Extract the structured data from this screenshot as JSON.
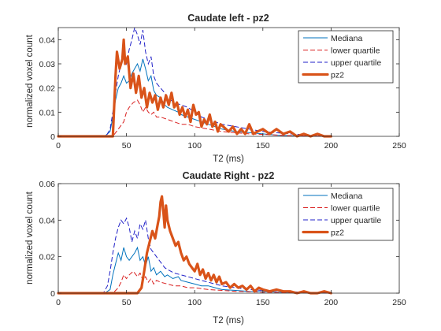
{
  "colors": {
    "mediana": "#0072BD",
    "lower": "#D92020",
    "upper": "#2020C8",
    "pz2": "#D95319",
    "axis": "#262626"
  },
  "chart_data": [
    {
      "type": "line",
      "title": "Caudate left - pz2",
      "xlabel": "T2 (ms)",
      "ylabel": "normalized voxel count",
      "xlim": [
        0,
        250
      ],
      "ylim": [
        0,
        0.045
      ],
      "xticks": [
        0,
        50,
        100,
        150,
        200,
        250
      ],
      "yticks": [
        0,
        0.01,
        0.02,
        0.03,
        0.04
      ],
      "xtick_labels": [
        "0",
        "50",
        "100",
        "150",
        "200",
        "250"
      ],
      "ytick_labels": [
        "0",
        "0.01",
        "0.02",
        "0.03",
        "0.04"
      ],
      "legend": {
        "position": "top-right",
        "entries": [
          "Mediana",
          "lower quartile",
          "upper quartile",
          "pz2"
        ]
      },
      "series": [
        {
          "name": "Mediana",
          "style": "solid",
          "color": "mediana",
          "x": [
            0,
            34,
            38,
            40,
            42,
            44,
            46,
            48,
            50,
            52,
            54,
            56,
            58,
            60,
            62,
            64,
            66,
            68,
            70,
            72,
            75,
            78,
            80,
            84,
            88,
            90,
            95,
            100,
            105,
            110,
            115,
            120,
            130,
            140,
            150,
            160,
            170,
            180,
            200
          ],
          "y": [
            0,
            0,
            0.002,
            0.008,
            0.015,
            0.02,
            0.022,
            0.025,
            0.022,
            0.023,
            0.026,
            0.028,
            0.03,
            0.027,
            0.032,
            0.028,
            0.023,
            0.025,
            0.019,
            0.017,
            0.016,
            0.013,
            0.012,
            0.011,
            0.01,
            0.009,
            0.008,
            0.007,
            0.006,
            0.005,
            0.004,
            0.003,
            0.002,
            0.0015,
            0.001,
            0.0005,
            0.0003,
            0.0001,
            0
          ]
        },
        {
          "name": "lower quartile",
          "style": "dashed",
          "color": "lower",
          "x": [
            0,
            40,
            44,
            48,
            50,
            52,
            55,
            58,
            60,
            62,
            64,
            66,
            68,
            70,
            72,
            75,
            80,
            85,
            90,
            95,
            100,
            110,
            120,
            130,
            140,
            150,
            170,
            200
          ],
          "y": [
            0,
            0,
            0.003,
            0.006,
            0.01,
            0.012,
            0.014,
            0.015,
            0.013,
            0.01,
            0.012,
            0.01,
            0.009,
            0.01,
            0.008,
            0.008,
            0.007,
            0.006,
            0.005,
            0.005,
            0.004,
            0.003,
            0.002,
            0.0015,
            0.001,
            0.0008,
            0.0003,
            0
          ]
        },
        {
          "name": "upper quartile",
          "style": "dashed",
          "color": "upper",
          "x": [
            0,
            35,
            38,
            40,
            42,
            44,
            46,
            48,
            50,
            52,
            54,
            56,
            58,
            60,
            62,
            64,
            66,
            68,
            70,
            72,
            75,
            78,
            80,
            85,
            90,
            95,
            100,
            105,
            110,
            120,
            130,
            140,
            150,
            170,
            200
          ],
          "y": [
            0,
            0,
            0.003,
            0.01,
            0.018,
            0.025,
            0.03,
            0.033,
            0.03,
            0.036,
            0.04,
            0.045,
            0.042,
            0.038,
            0.044,
            0.035,
            0.03,
            0.033,
            0.025,
            0.022,
            0.02,
            0.018,
            0.016,
            0.014,
            0.013,
            0.012,
            0.01,
            0.008,
            0.007,
            0.005,
            0.004,
            0.003,
            0.002,
            0.001,
            0
          ]
        },
        {
          "name": "pz2",
          "style": "thick",
          "color": "pz2",
          "x": [
            0,
            40,
            42,
            43,
            45,
            47,
            48,
            49,
            51,
            53,
            55,
            57,
            59,
            61,
            63,
            65,
            67,
            69,
            71,
            73,
            75,
            77,
            79,
            81,
            83,
            85,
            87,
            89,
            91,
            93,
            95,
            97,
            99,
            101,
            103,
            105,
            107,
            109,
            111,
            113,
            115,
            117,
            119,
            121,
            123,
            125,
            128,
            131,
            134,
            137,
            140,
            143,
            146,
            150,
            155,
            160,
            165,
            170,
            175,
            180,
            185,
            190,
            195,
            200
          ],
          "y": [
            0,
            0,
            0.025,
            0.035,
            0.028,
            0.032,
            0.04,
            0.03,
            0.033,
            0.02,
            0.026,
            0.018,
            0.025,
            0.016,
            0.02,
            0.012,
            0.018,
            0.014,
            0.017,
            0.011,
            0.016,
            0.012,
            0.017,
            0.013,
            0.018,
            0.012,
            0.014,
            0.009,
            0.012,
            0.008,
            0.011,
            0.006,
            0.013,
            0.009,
            0.01,
            0.004,
            0.007,
            0.005,
            0.009,
            0.004,
            0.006,
            0.002,
            0.005,
            0.004,
            0.003,
            0.002,
            0.004,
            0.001,
            0.003,
            0.001,
            0.005,
            0.001,
            0.002,
            0.003,
            0.001,
            0.003,
            0.001,
            0.002,
            0,
            0.001,
            0,
            0.001,
            0,
            0
          ]
        }
      ]
    },
    {
      "type": "line",
      "title": "Caudate Right - pz2",
      "xlabel": "T2 (ms)",
      "ylabel": "normalized voxel count",
      "xlim": [
        0,
        250
      ],
      "ylim": [
        0,
        0.06
      ],
      "xticks": [
        0,
        50,
        100,
        150,
        200,
        250
      ],
      "yticks": [
        0,
        0.02,
        0.04,
        0.06
      ],
      "xtick_labels": [
        "0",
        "50",
        "100",
        "150",
        "200",
        "250"
      ],
      "ytick_labels": [
        "0",
        "0.02",
        "0.04",
        "0.06"
      ],
      "legend": {
        "position": "top-right",
        "entries": [
          "Mediana",
          "lower quartile",
          "upper quartile",
          "pz2"
        ]
      },
      "series": [
        {
          "name": "Mediana",
          "style": "solid",
          "color": "mediana",
          "x": [
            0,
            34,
            38,
            40,
            42,
            44,
            46,
            48,
            50,
            52,
            54,
            56,
            58,
            60,
            62,
            64,
            66,
            68,
            70,
            72,
            75,
            78,
            80,
            84,
            88,
            90,
            95,
            100,
            105,
            110,
            115,
            120,
            130,
            140,
            150,
            160,
            170,
            180,
            200
          ],
          "y": [
            0,
            0,
            0.002,
            0.01,
            0.016,
            0.022,
            0.018,
            0.025,
            0.02,
            0.018,
            0.02,
            0.022,
            0.025,
            0.018,
            0.02,
            0.015,
            0.02,
            0.012,
            0.014,
            0.01,
            0.012,
            0.009,
            0.01,
            0.008,
            0.009,
            0.007,
            0.006,
            0.005,
            0.004,
            0.004,
            0.003,
            0.002,
            0.0015,
            0.001,
            0.0008,
            0.0005,
            0.0003,
            0.0001,
            0
          ]
        },
        {
          "name": "lower quartile",
          "style": "dashed",
          "color": "lower",
          "x": [
            0,
            40,
            44,
            46,
            48,
            50,
            52,
            55,
            58,
            60,
            62,
            64,
            66,
            68,
            70,
            72,
            75,
            80,
            85,
            90,
            95,
            100,
            110,
            120,
            130,
            140,
            150,
            170,
            200
          ],
          "y": [
            0,
            0,
            0.003,
            0.006,
            0.01,
            0.008,
            0.01,
            0.012,
            0.009,
            0.011,
            0.007,
            0.009,
            0.006,
            0.008,
            0.005,
            0.007,
            0.006,
            0.005,
            0.004,
            0.004,
            0.003,
            0.003,
            0.002,
            0.0015,
            0.001,
            0.0008,
            0.0005,
            0.0002,
            0
          ]
        },
        {
          "name": "upper quartile",
          "style": "dashed",
          "color": "upper",
          "x": [
            0,
            33,
            36,
            38,
            40,
            42,
            44,
            46,
            48,
            50,
            52,
            54,
            56,
            58,
            60,
            62,
            64,
            66,
            68,
            70,
            72,
            75,
            78,
            80,
            85,
            90,
            95,
            100,
            105,
            110,
            120,
            130,
            140,
            150,
            170,
            200
          ],
          "y": [
            0,
            0,
            0.004,
            0.012,
            0.022,
            0.03,
            0.036,
            0.04,
            0.038,
            0.041,
            0.036,
            0.028,
            0.034,
            0.03,
            0.038,
            0.035,
            0.04,
            0.03,
            0.024,
            0.022,
            0.02,
            0.017,
            0.014,
            0.013,
            0.011,
            0.01,
            0.009,
            0.008,
            0.007,
            0.006,
            0.004,
            0.003,
            0.002,
            0.0015,
            0.0008,
            0
          ]
        },
        {
          "name": "pz2",
          "style": "thick",
          "color": "pz2",
          "x": [
            0,
            58,
            61,
            63,
            65,
            67,
            69,
            71,
            73,
            74,
            75,
            76,
            77,
            78,
            79,
            80,
            82,
            84,
            86,
            88,
            90,
            92,
            94,
            96,
            98,
            100,
            102,
            104,
            106,
            108,
            110,
            112,
            114,
            116,
            118,
            120,
            123,
            126,
            129,
            132,
            135,
            138,
            141,
            144,
            147,
            150,
            155,
            160,
            165,
            170,
            175,
            180,
            185,
            190,
            195,
            200
          ],
          "y": [
            0,
            0,
            0.003,
            0.012,
            0.022,
            0.028,
            0.034,
            0.03,
            0.038,
            0.042,
            0.05,
            0.053,
            0.045,
            0.036,
            0.048,
            0.04,
            0.034,
            0.03,
            0.026,
            0.028,
            0.022,
            0.018,
            0.02,
            0.016,
            0.014,
            0.012,
            0.016,
            0.01,
            0.013,
            0.008,
            0.011,
            0.007,
            0.01,
            0.006,
            0.009,
            0.005,
            0.006,
            0.003,
            0.005,
            0.003,
            0.004,
            0.002,
            0.004,
            0.001,
            0.003,
            0.002,
            0.001,
            0.002,
            0.001,
            0.001,
            0,
            0.001,
            0,
            0,
            0.001,
            0
          ]
        }
      ]
    }
  ]
}
